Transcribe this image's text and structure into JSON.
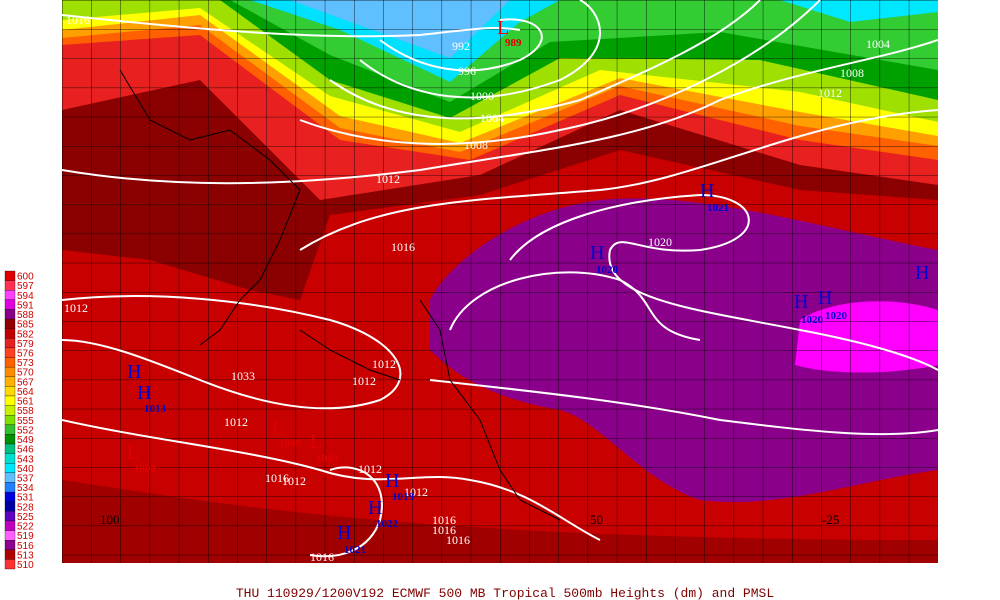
{
  "colorbar": {
    "levels": [
      600,
      597,
      594,
      591,
      588,
      585,
      582,
      579,
      576,
      573,
      570,
      567,
      564,
      561,
      558,
      555,
      552,
      549,
      546,
      543,
      540,
      537,
      534,
      531,
      528,
      525,
      522,
      519,
      516,
      513,
      510
    ],
    "colors": [
      "#e00000",
      "#ff3050",
      "#ff40ff",
      "#e000e0",
      "#8b008b",
      "#900000",
      "#c00000",
      "#e82020",
      "#ff4020",
      "#ff6000",
      "#ff8c00",
      "#ffb000",
      "#ffd800",
      "#ffff00",
      "#c8f000",
      "#80e000",
      "#30c030",
      "#009000",
      "#00c080",
      "#00e0d0",
      "#00e8ff",
      "#60c0ff",
      "#2080ff",
      "#0000e0",
      "#0000a0",
      "#6000c0",
      "#c000c0",
      "#ff60ff",
      "#900090",
      "#b00000",
      "#ff3030"
    ]
  },
  "isobar_labels": [
    1016,
    992,
    996,
    1000,
    1004,
    1008,
    1012,
    1016,
    1012,
    1020,
    1004,
    1008,
    1012,
    1033,
    1012,
    1012,
    1012,
    1016,
    1012,
    1012,
    1012,
    1016,
    1016,
    1016,
    1016
  ],
  "centers": [
    {
      "letter": "L",
      "value": 989
    },
    {
      "letter": "H",
      "value": 1021
    },
    {
      "letter": "H",
      "value": 1020
    },
    {
      "letter": "H",
      "value": 1020
    },
    {
      "letter": "H",
      "value": 1020
    },
    {
      "letter": "H"
    },
    {
      "letter": "H"
    },
    {
      "letter": "H",
      "value": 1013
    },
    {
      "letter": "L",
      "value": 1009
    },
    {
      "letter": "L",
      "value": 1009
    },
    {
      "letter": "L",
      "value": 1009
    },
    {
      "letter": "H",
      "value": 1019
    },
    {
      "letter": "H",
      "value": 1022
    },
    {
      "letter": "H",
      "value": 1021
    }
  ],
  "longitude_labels": [
    100,
    50,
    -25
  ],
  "footer": "THU 110929/1200V192  ECMWF  500 MB Tropical 500mb Heights (dm) and PMSL"
}
